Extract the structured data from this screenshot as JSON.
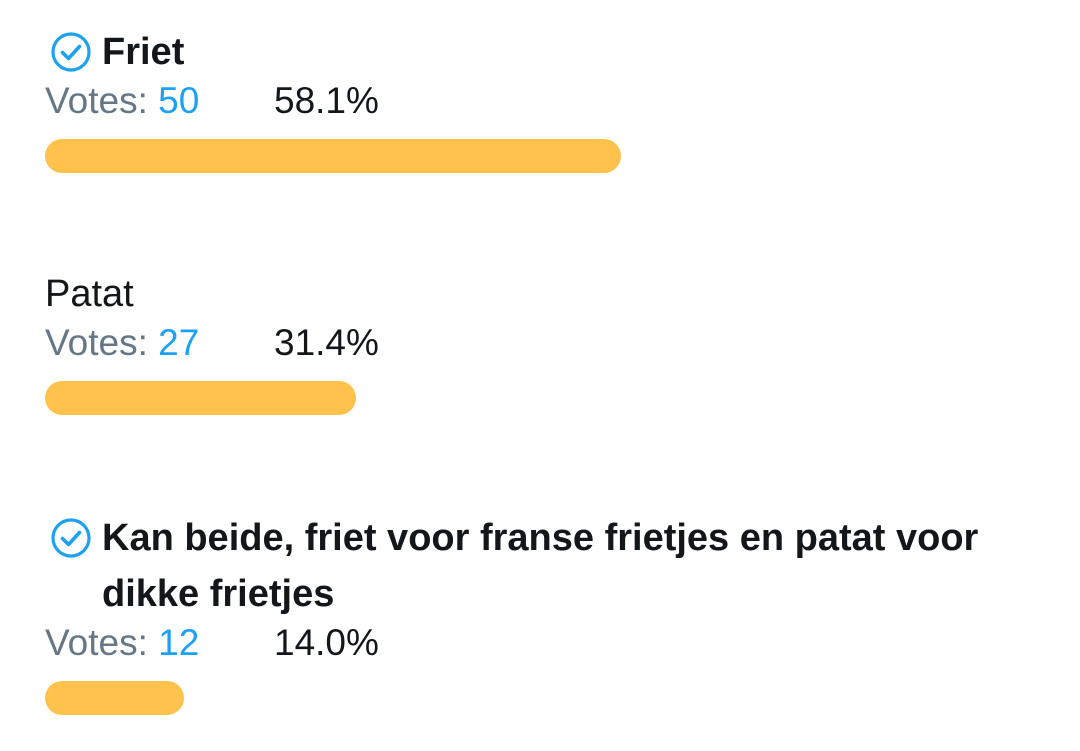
{
  "poll": {
    "options": [
      {
        "label": "Friet",
        "selected": true,
        "votes_label": "Votes: ",
        "votes": "50",
        "percent": "58.1%",
        "fraction": 0.581
      },
      {
        "label": "Patat",
        "selected": false,
        "votes_label": "Votes: ",
        "votes": "27",
        "percent": "31.4%",
        "fraction": 0.314
      },
      {
        "label": "Kan beide, friet voor franse frietjes en patat voor dikke frietjes",
        "selected": true,
        "votes_label": "Votes: ",
        "votes": "12",
        "percent": "14.0%",
        "fraction": 0.14
      }
    ],
    "colors": {
      "bar": "#ffc34d",
      "votes_count": "#1da1f2",
      "votes_label": "#657786",
      "check": "#1da1f2"
    },
    "icons": {
      "selected": "check-circle-icon"
    }
  }
}
